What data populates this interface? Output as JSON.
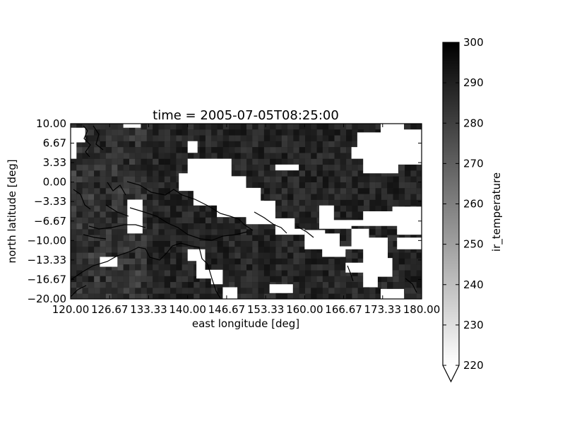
{
  "chart_data": {
    "type": "heatmap",
    "title": "time = 2005-07-05T08:25:00",
    "xlabel": "east longitude [deg]",
    "ylabel": "north latitude [deg]",
    "xlim": [
      120.0,
      180.0
    ],
    "ylim": [
      -20.0,
      10.0
    ],
    "x_ticks": [
      "120.00",
      "126.67",
      "133.33",
      "140.00",
      "146.67",
      "153.33",
      "160.00",
      "166.67",
      "173.33",
      "180.00"
    ],
    "y_ticks": [
      "10.00",
      "6.67",
      "3.33",
      "0.00",
      "−3.33",
      "−6.67",
      "−10.00",
      "−13.33",
      "−16.67",
      "−20.00"
    ],
    "colorbar": {
      "label": "ir_temperature",
      "range": [
        220,
        300
      ],
      "ticks": [
        "300",
        "290",
        "280",
        "270",
        "260",
        "250",
        "240",
        "230",
        "220"
      ],
      "extend": "min",
      "cmap_low": "#ffffff",
      "cmap_high": "#000000"
    },
    "grid": false,
    "legend": "none",
    "cloud_threshold_value": 220,
    "cloud_regions_lonlat": [
      [
        [
          120.0,
          9.3
        ],
        [
          122.5,
          9.3
        ],
        [
          122.5,
          6.8
        ],
        [
          121.0,
          6.8
        ],
        [
          121.0,
          4.0
        ],
        [
          120.0,
          4.0
        ]
      ],
      [
        [
          129.0,
          10.0
        ],
        [
          132.0,
          10.0
        ],
        [
          132.0,
          9.3
        ],
        [
          129.0,
          9.3
        ]
      ],
      [
        [
          129.7,
          -3.0
        ],
        [
          132.3,
          -3.0
        ],
        [
          132.3,
          -8.8
        ],
        [
          129.7,
          -8.8
        ]
      ],
      [
        [
          143.3,
          4.0
        ],
        [
          147.5,
          4.0
        ],
        [
          147.5,
          1.0
        ],
        [
          150.0,
          1.0
        ],
        [
          150.0,
          -1.0
        ],
        [
          152.5,
          -1.0
        ],
        [
          152.5,
          -3.2
        ],
        [
          155.0,
          -3.2
        ],
        [
          155.0,
          -6.2
        ],
        [
          158.3,
          -6.2
        ],
        [
          158.3,
          -8.0
        ],
        [
          160.0,
          -8.0
        ],
        [
          160.0,
          -9.0
        ],
        [
          155.0,
          -9.0
        ],
        [
          155.0,
          -7.2
        ],
        [
          150.0,
          -7.2
        ],
        [
          150.0,
          -6.0
        ],
        [
          145.0,
          -6.0
        ],
        [
          145.0,
          -4.0
        ],
        [
          141.0,
          -4.0
        ],
        [
          141.0,
          -1.5
        ],
        [
          138.5,
          -1.5
        ],
        [
          138.5,
          1.5
        ],
        [
          140.0,
          1.5
        ],
        [
          140.0,
          4.0
        ]
      ],
      [
        [
          140.0,
          7.0
        ],
        [
          141.7,
          7.0
        ],
        [
          141.7,
          5.0
        ],
        [
          140.0,
          5.0
        ]
      ],
      [
        [
          155.0,
          3.0
        ],
        [
          159.0,
          3.0
        ],
        [
          159.0,
          2.0
        ],
        [
          155.0,
          2.0
        ]
      ],
      [
        [
          145.0,
          -0.8
        ],
        [
          150.0,
          -0.8
        ],
        [
          150.0,
          -2.5
        ],
        [
          145.0,
          -2.5
        ]
      ],
      [
        [
          169.0,
          8.5
        ],
        [
          173.0,
          8.5
        ],
        [
          173.0,
          10.0
        ],
        [
          177.0,
          10.0
        ],
        [
          177.0,
          9.0
        ],
        [
          180.0,
          9.0
        ],
        [
          180.0,
          3.0
        ],
        [
          176.0,
          3.0
        ],
        [
          176.0,
          1.5
        ],
        [
          170.0,
          1.5
        ],
        [
          170.0,
          4.0
        ],
        [
          168.0,
          4.0
        ],
        [
          168.0,
          6.0
        ],
        [
          169.0,
          6.0
        ]
      ],
      [
        [
          162.5,
          -4.0
        ],
        [
          165.0,
          -4.0
        ],
        [
          165.0,
          -6.5
        ],
        [
          170.0,
          -6.5
        ],
        [
          170.0,
          -5.0
        ],
        [
          175.0,
          -5.0
        ],
        [
          175.0,
          -4.2
        ],
        [
          180.0,
          -4.2
        ],
        [
          180.0,
          -9.0
        ],
        [
          175.8,
          -9.0
        ],
        [
          175.8,
          -7.5
        ],
        [
          168.0,
          -7.5
        ],
        [
          168.0,
          -11.0
        ],
        [
          166.0,
          -11.0
        ],
        [
          166.0,
          -8.8
        ],
        [
          163.5,
          -8.8
        ],
        [
          163.5,
          -8.2
        ],
        [
          160.0,
          -8.2
        ],
        [
          160.0,
          -11.5
        ],
        [
          163.0,
          -11.5
        ],
        [
          163.0,
          -12.8
        ],
        [
          167.0,
          -12.8
        ],
        [
          167.0,
          -11.5
        ],
        [
          170.0,
          -11.5
        ],
        [
          170.0,
          -13.8
        ],
        [
          167.0,
          -13.8
        ],
        [
          167.0,
          -15.5
        ],
        [
          170.0,
          -15.5
        ],
        [
          170.0,
          -18.0
        ],
        [
          172.5,
          -18.0
        ],
        [
          172.5,
          -16.2
        ],
        [
          175.0,
          -16.2
        ],
        [
          175.0,
          -13.0
        ],
        [
          174.2,
          -13.0
        ],
        [
          174.2,
          -9.5
        ],
        [
          171.0,
          -9.5
        ],
        [
          171.0,
          -8.0
        ],
        [
          162.5,
          -8.0
        ]
      ],
      [
        [
          175.8,
          -9.5
        ],
        [
          180.0,
          -9.5
        ],
        [
          180.0,
          -11.5
        ],
        [
          175.8,
          -11.5
        ]
      ],
      [
        [
          140.0,
          -11.5
        ],
        [
          143.0,
          -11.5
        ],
        [
          143.0,
          -15.0
        ],
        [
          146.0,
          -15.0
        ],
        [
          146.0,
          -17.5
        ],
        [
          144.0,
          -17.5
        ],
        [
          144.0,
          -16.5
        ],
        [
          141.5,
          -16.5
        ],
        [
          141.5,
          -13.5
        ],
        [
          140.0,
          -13.5
        ]
      ],
      [
        [
          154.0,
          -17.5
        ],
        [
          158.0,
          -17.5
        ],
        [
          158.0,
          -19.0
        ],
        [
          154.0,
          -19.0
        ]
      ],
      [
        [
          146.0,
          -18.0
        ],
        [
          148.5,
          -18.0
        ],
        [
          148.5,
          -20.0
        ],
        [
          146.0,
          -20.0
        ]
      ],
      [
        [
          173.0,
          -18.3
        ],
        [
          177.0,
          -18.3
        ],
        [
          177.0,
          -20.0
        ],
        [
          173.0,
          -20.0
        ]
      ],
      [
        [
          125.0,
          -12.8
        ],
        [
          128.0,
          -12.8
        ],
        [
          128.0,
          -14.5
        ],
        [
          125.0,
          -14.5
        ]
      ]
    ]
  }
}
